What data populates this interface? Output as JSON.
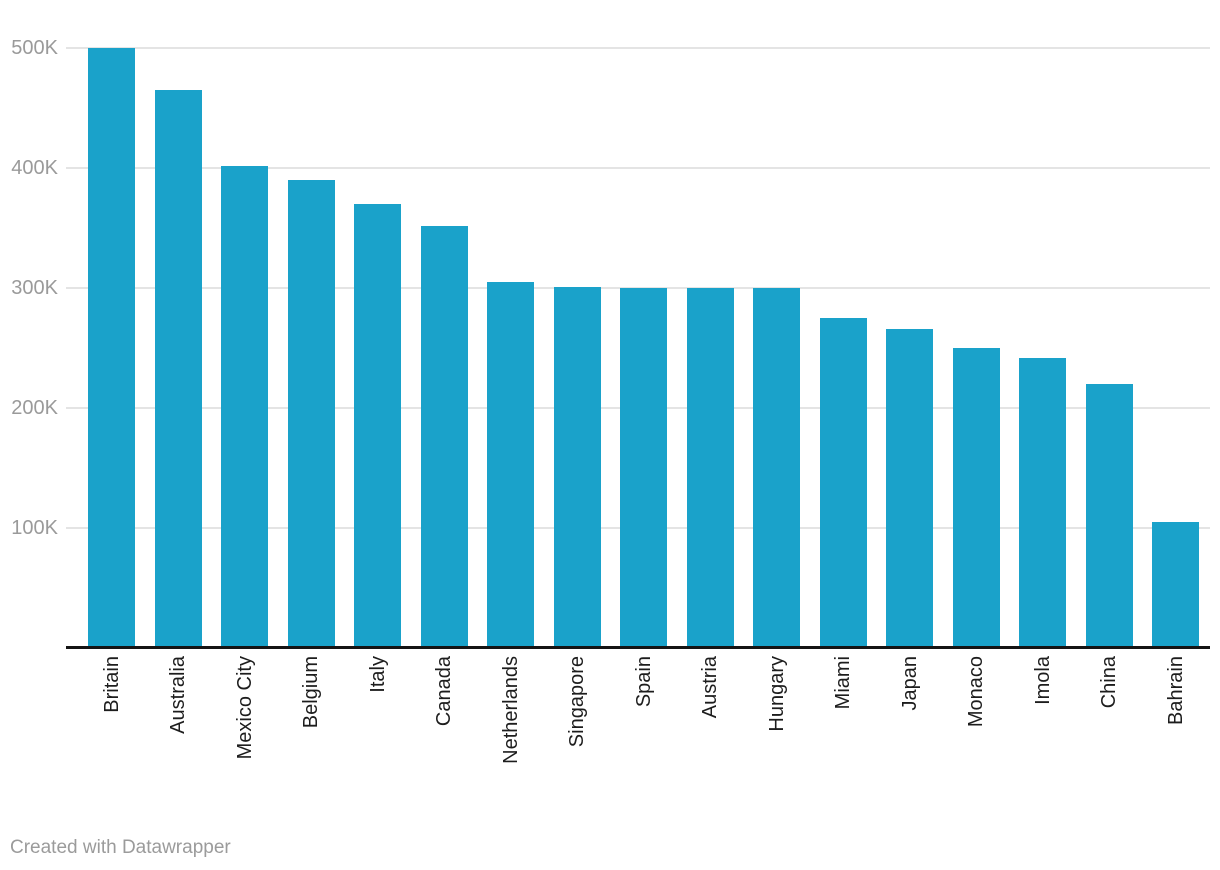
{
  "chart_data": {
    "type": "bar",
    "categories": [
      "Britain",
      "Australia",
      "Mexico City",
      "Belgium",
      "Italy",
      "Canada",
      "Netherlands",
      "Singapore",
      "Spain",
      "Austria",
      "Hungary",
      "Miami",
      "Japan",
      "Monaco",
      "Imola",
      "China",
      "Bahrain"
    ],
    "values": [
      500000,
      465000,
      402000,
      390000,
      370000,
      352000,
      305000,
      301000,
      300000,
      300000,
      300000,
      275000,
      266000,
      250000,
      242000,
      220000,
      105000
    ],
    "xlabel": "",
    "ylabel": "",
    "ylim": [
      0,
      500000
    ],
    "yticks": [
      {
        "value": 100000,
        "label": "100K"
      },
      {
        "value": 200000,
        "label": "200K"
      },
      {
        "value": 300000,
        "label": "300K"
      },
      {
        "value": 400000,
        "label": "400K"
      },
      {
        "value": 500000,
        "label": "500K"
      }
    ],
    "grid": true,
    "legend": false,
    "colors": {
      "bar": "#1aa2ca",
      "grid": "#e4e4e4",
      "baseline": "#141414",
      "y_tick_text": "#9a9a9a",
      "x_label_text": "#1d1d1d",
      "background": "#ffffff"
    }
  },
  "footer": {
    "credit": "Created with Datawrapper",
    "credit_color": "#9b9b9b"
  }
}
